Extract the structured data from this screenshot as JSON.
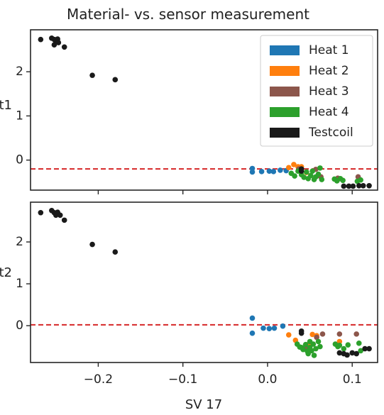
{
  "chart_data": {
    "type": "scatter",
    "title": "Material- vs. sensor measurement",
    "xlabel": "SV 17",
    "xlim": [
      -0.28,
      0.13
    ],
    "xticks": [
      -0.2,
      -0.1,
      0.0,
      0.1
    ],
    "xtick_labels": [
      "−0.2",
      "−0.1",
      "0.0",
      "0.1"
    ],
    "legend_position": "upper right",
    "grid": false,
    "panels": [
      {
        "ylabel": "t1",
        "ylim": [
          -0.68,
          2.95
        ],
        "yticks": [
          0,
          1,
          2
        ],
        "ytick_labels": [
          "0",
          "1",
          "2"
        ],
        "threshold": -0.2,
        "series": [
          {
            "name": "Heat 1",
            "color": "#1f77b4",
            "points": [
              [
                -0.018,
                -0.19
              ],
              [
                -0.018,
                -0.27
              ],
              [
                -0.007,
                -0.26
              ],
              [
                0.002,
                -0.25
              ],
              [
                0.007,
                -0.26
              ],
              [
                0.015,
                -0.23
              ],
              [
                0.022,
                -0.24
              ]
            ]
          },
          {
            "name": "Heat 2",
            "color": "#ff7f0e",
            "points": [
              [
                0.025,
                -0.17
              ],
              [
                0.031,
                -0.1
              ],
              [
                0.036,
                -0.15
              ],
              [
                0.04,
                -0.15
              ],
              [
                0.046,
                -0.28
              ]
            ]
          },
          {
            "name": "Heat 3",
            "color": "#8c564b",
            "points": [
              [
                0.037,
                -0.2
              ],
              [
                0.057,
                -0.21
              ],
              [
                0.063,
                -0.38
              ],
              [
                0.083,
                -0.41
              ],
              [
                0.107,
                -0.38
              ]
            ]
          },
          {
            "name": "Heat 4",
            "color": "#2ca02c",
            "points": [
              [
                0.028,
                -0.3
              ],
              [
                0.032,
                -0.36
              ],
              [
                0.036,
                -0.25
              ],
              [
                0.04,
                -0.33
              ],
              [
                0.043,
                -0.39
              ],
              [
                0.046,
                -0.27
              ],
              [
                0.048,
                -0.42
              ],
              [
                0.051,
                -0.35
              ],
              [
                0.053,
                -0.25
              ],
              [
                0.055,
                -0.44
              ],
              [
                0.057,
                -0.38
              ],
              [
                0.06,
                -0.32
              ],
              [
                0.062,
                -0.18
              ],
              [
                0.064,
                -0.44
              ],
              [
                0.079,
                -0.43
              ],
              [
                0.082,
                -0.47
              ],
              [
                0.086,
                -0.42
              ],
              [
                0.089,
                -0.46
              ],
              [
                0.106,
                -0.48
              ],
              [
                0.11,
                -0.45
              ]
            ]
          },
          {
            "name": "Testcoil",
            "color": "#1a1a1a",
            "points": [
              [
                -0.268,
                2.73
              ],
              [
                -0.255,
                2.76
              ],
              [
                -0.252,
                2.73
              ],
              [
                -0.25,
                2.68
              ],
              [
                -0.248,
                2.74
              ],
              [
                -0.252,
                2.61
              ],
              [
                -0.247,
                2.66
              ],
              [
                -0.24,
                2.56
              ],
              [
                -0.207,
                1.92
              ],
              [
                -0.18,
                1.82
              ],
              [
                0.04,
                -0.2
              ],
              [
                0.04,
                -0.25
              ],
              [
                0.09,
                -0.59
              ],
              [
                0.096,
                -0.59
              ],
              [
                0.101,
                -0.59
              ],
              [
                0.108,
                -0.58
              ],
              [
                0.113,
                -0.58
              ],
              [
                0.12,
                -0.58
              ]
            ]
          }
        ]
      },
      {
        "ylabel": "t2",
        "ylim": [
          -0.88,
          2.95
        ],
        "yticks": [
          0,
          1,
          2
        ],
        "ytick_labels": [
          "0",
          "1",
          "2"
        ],
        "threshold": 0.02,
        "series": [
          {
            "name": "Heat 1",
            "color": "#1f77b4",
            "points": [
              [
                -0.018,
                0.18
              ],
              [
                -0.018,
                -0.18
              ],
              [
                -0.005,
                -0.06
              ],
              [
                0.002,
                -0.07
              ],
              [
                0.008,
                -0.06
              ],
              [
                0.018,
                -0.01
              ]
            ]
          },
          {
            "name": "Heat 2",
            "color": "#ff7f0e",
            "points": [
              [
                0.025,
                -0.22
              ],
              [
                0.033,
                -0.35
              ],
              [
                0.048,
                -0.45
              ],
              [
                0.053,
                -0.21
              ],
              [
                0.058,
                -0.24
              ],
              [
                0.085,
                -0.38
              ]
            ]
          },
          {
            "name": "Heat 3",
            "color": "#8c564b",
            "points": [
              [
                0.045,
                -0.55
              ],
              [
                0.058,
                -0.28
              ],
              [
                0.065,
                -0.2
              ],
              [
                0.085,
                -0.2
              ],
              [
                0.105,
                -0.2
              ]
            ]
          },
          {
            "name": "Heat 4",
            "color": "#2ca02c",
            "points": [
              [
                0.035,
                -0.44
              ],
              [
                0.038,
                -0.51
              ],
              [
                0.04,
                -0.52
              ],
              [
                0.042,
                -0.57
              ],
              [
                0.045,
                -0.45
              ],
              [
                0.047,
                -0.61
              ],
              [
                0.048,
                -0.67
              ],
              [
                0.05,
                -0.38
              ],
              [
                0.05,
                -0.52
              ],
              [
                0.052,
                -0.6
              ],
              [
                0.054,
                -0.44
              ],
              [
                0.055,
                -0.71
              ],
              [
                0.057,
                -0.55
              ],
              [
                0.06,
                -0.38
              ],
              [
                0.062,
                -0.5
              ],
              [
                0.08,
                -0.44
              ],
              [
                0.083,
                -0.5
              ],
              [
                0.085,
                -0.47
              ],
              [
                0.09,
                -0.55
              ],
              [
                0.095,
                -0.46
              ],
              [
                0.108,
                -0.42
              ],
              [
                0.11,
                -0.6
              ]
            ]
          },
          {
            "name": "Testcoil",
            "color": "#1a1a1a",
            "points": [
              [
                -0.268,
                2.7
              ],
              [
                -0.255,
                2.75
              ],
              [
                -0.252,
                2.7
              ],
              [
                -0.25,
                2.64
              ],
              [
                -0.248,
                2.71
              ],
              [
                -0.245,
                2.64
              ],
              [
                -0.24,
                2.52
              ],
              [
                -0.207,
                1.94
              ],
              [
                -0.18,
                1.76
              ],
              [
                0.04,
                -0.13
              ],
              [
                0.04,
                -0.18
              ],
              [
                0.085,
                -0.65
              ],
              [
                0.09,
                -0.67
              ],
              [
                0.094,
                -0.7
              ],
              [
                0.1,
                -0.65
              ],
              [
                0.105,
                -0.67
              ],
              [
                0.115,
                -0.55
              ],
              [
                0.12,
                -0.55
              ]
            ]
          }
        ]
      }
    ]
  },
  "colors": {
    "threshold_line": "#d62728",
    "axes": "#262626",
    "text": "#222222",
    "background": "#ffffff"
  }
}
